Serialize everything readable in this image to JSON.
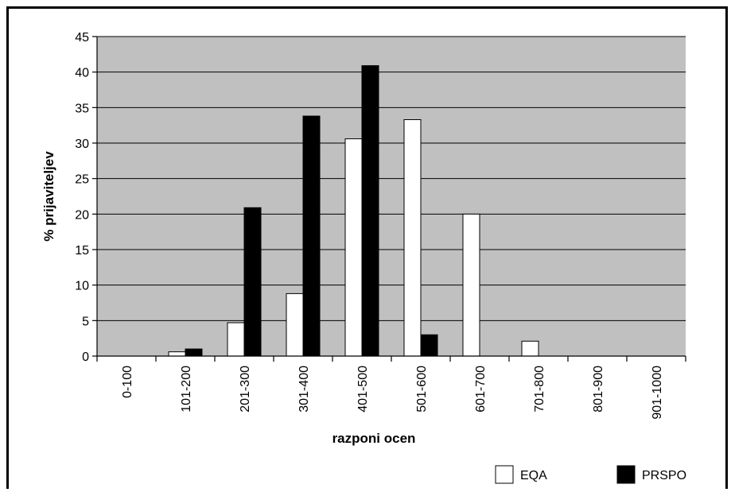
{
  "chart_data": {
    "type": "bar",
    "xlabel": "razponi ocen",
    "ylabel": "% prijaviteljev",
    "ylim": [
      0,
      45
    ],
    "yticks": [
      0,
      5,
      10,
      15,
      20,
      25,
      30,
      35,
      40,
      45
    ],
    "categories": [
      "0-100",
      "101-200",
      "201-300",
      "301-400",
      "401-500",
      "501-600",
      "601-700",
      "701-800",
      "801-900",
      "901-1000"
    ],
    "series": [
      {
        "name": "EQA",
        "color": "#ffffff",
        "values": [
          0,
          0.6,
          4.7,
          8.8,
          30.6,
          33.3,
          20.0,
          2.1,
          0,
          0
        ]
      },
      {
        "name": "PRSPO",
        "color": "#000000",
        "values": [
          0,
          1.0,
          20.9,
          33.8,
          40.9,
          3.0,
          0,
          0,
          0,
          0
        ]
      }
    ],
    "plot_background": "#c0c0c0",
    "grid": true,
    "legend_position": "bottom-right"
  }
}
